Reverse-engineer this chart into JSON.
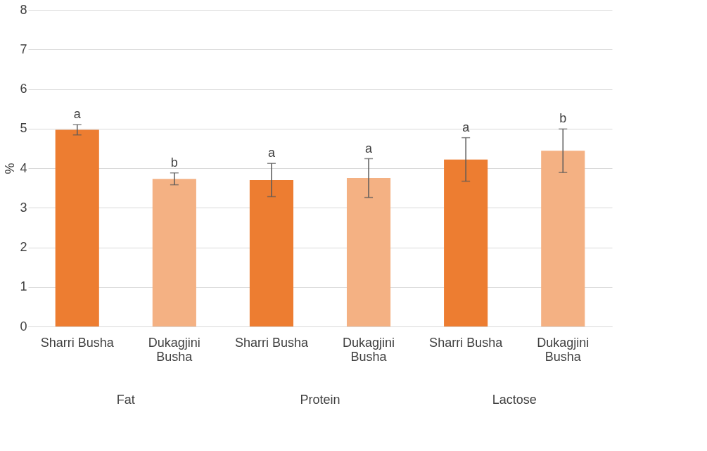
{
  "chart_data": {
    "type": "bar",
    "categories": [
      "Sharri Busha",
      "Dukagjini Busha",
      "Sharri Busha",
      "Dukagjini Busha",
      "Sharri Busha",
      "Dukagjini Busha"
    ],
    "values": [
      4.97,
      3.73,
      3.7,
      3.75,
      4.22,
      4.44
    ],
    "colors": [
      "#ed7d31",
      "#f4b183",
      "#ed7d31",
      "#f4b183",
      "#ed7d31",
      "#f4b183"
    ],
    "errors": [
      0.13,
      0.15,
      0.42,
      0.49,
      0.55,
      0.55
    ],
    "value_labels": [
      "a",
      "b",
      "a",
      "a",
      "a",
      "b"
    ],
    "annotations": [
      "Fat",
      "Protein",
      "Lactose"
    ],
    "ylabel": "%",
    "ylim": [
      0,
      8
    ],
    "yticks": [
      0,
      1,
      2,
      3,
      4,
      5,
      6,
      7,
      8
    ],
    "grid": "y"
  }
}
